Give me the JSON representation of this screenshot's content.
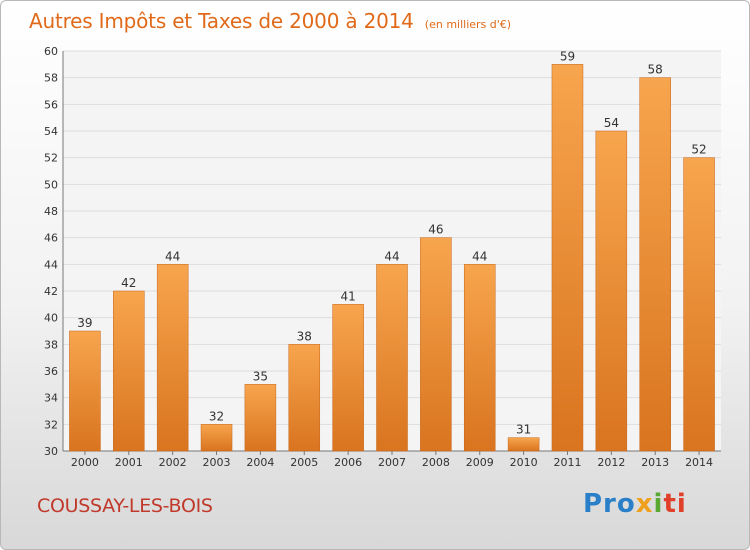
{
  "header": {
    "title": "Autres Impôts et Taxes de 2000 à 2014",
    "unit": "(en milliers d'€)"
  },
  "footer": {
    "commune": "COUSSAY-LES-BOIS",
    "brand": [
      "Pro",
      "x",
      "i",
      "ti"
    ]
  },
  "colors": {
    "bar_light": "#f7a54e",
    "bar_dark": "#d9741f",
    "title": "#e06a1a",
    "commune": "#c0392b"
  },
  "chart_data": {
    "type": "bar",
    "categories": [
      "2000",
      "2001",
      "2002",
      "2003",
      "2004",
      "2005",
      "2006",
      "2007",
      "2008",
      "2009",
      "2010",
      "2011",
      "2012",
      "2013",
      "2014"
    ],
    "values": [
      39,
      42,
      44,
      32,
      35,
      38,
      41,
      44,
      46,
      44,
      31,
      59,
      54,
      58,
      52
    ],
    "ylim": [
      30,
      60
    ],
    "yticks": [
      30,
      32,
      34,
      36,
      38,
      40,
      42,
      44,
      46,
      48,
      50,
      52,
      54,
      56,
      58,
      60
    ],
    "grid": true
  }
}
